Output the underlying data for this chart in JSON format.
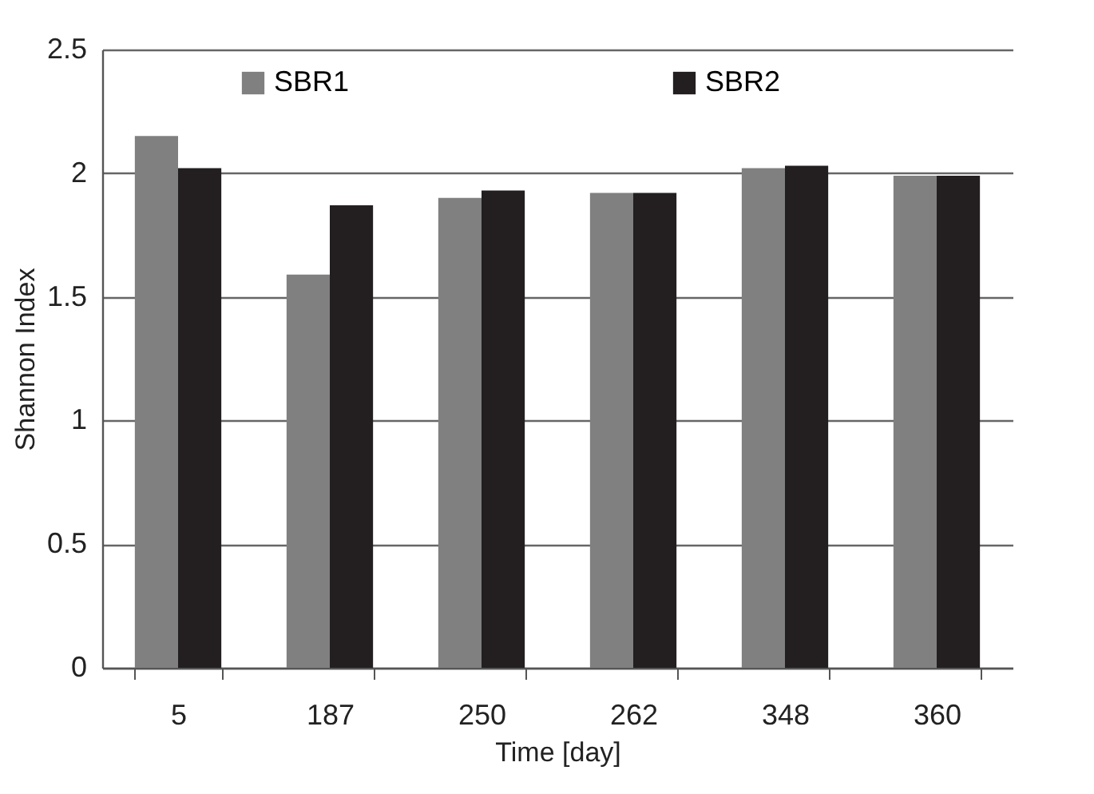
{
  "chart_data": {
    "type": "bar",
    "xlabel": "Time [day]",
    "ylabel": "Shannon Index",
    "categories": [
      "5",
      "187",
      "250",
      "262",
      "348",
      "360"
    ],
    "series": [
      {
        "name": "SBR1",
        "color": "#808080",
        "values": [
          2.15,
          1.59,
          1.9,
          1.92,
          2.02,
          1.99
        ]
      },
      {
        "name": "SBR2",
        "color": "#231f20",
        "values": [
          2.02,
          1.87,
          1.93,
          1.92,
          2.03,
          1.99
        ]
      }
    ],
    "ylim": [
      0,
      2.5
    ],
    "yticks": [
      0,
      0.5,
      1,
      1.5,
      2,
      2.5
    ],
    "grid": "y",
    "legend": "top"
  }
}
